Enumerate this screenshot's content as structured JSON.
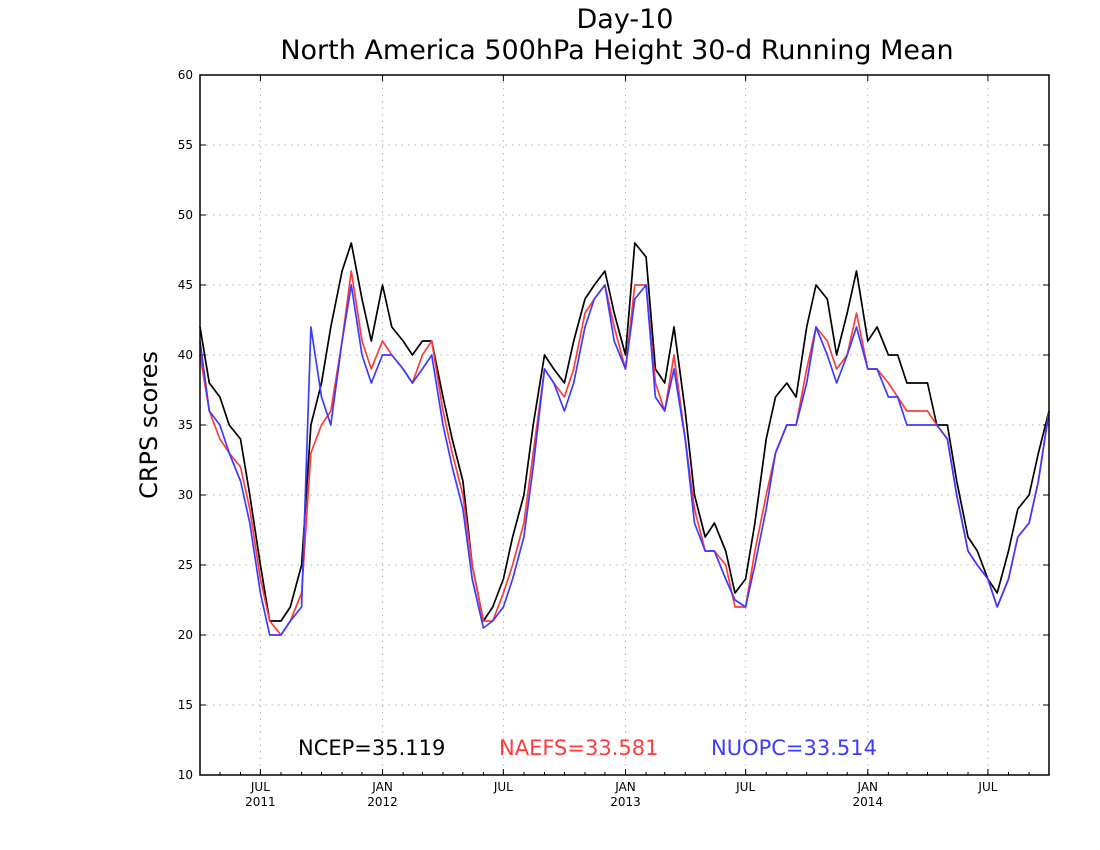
{
  "chart_data": {
    "type": "line",
    "title": "Day-10",
    "subtitle": "North America 500hPa Height 30-d Running Mean",
    "xlabel": "",
    "ylabel": "CRPS scores",
    "ylim": [
      10,
      60
    ],
    "yticks": [
      10,
      15,
      20,
      25,
      30,
      35,
      40,
      45,
      50,
      55,
      60
    ],
    "xlim": [
      "2011-04-01",
      "2014-10-01"
    ],
    "xticks": [
      {
        "date": "2011-07-01",
        "label": "JUL",
        "year": "2011"
      },
      {
        "date": "2012-01-01",
        "label": "JAN",
        "year": "2012"
      },
      {
        "date": "2012-07-01",
        "label": "JUL",
        "year": ""
      },
      {
        "date": "2013-01-01",
        "label": "JAN",
        "year": "2013"
      },
      {
        "date": "2013-07-01",
        "label": "JUL",
        "year": ""
      },
      {
        "date": "2014-01-01",
        "label": "JAN",
        "year": "2014"
      },
      {
        "date": "2014-07-01",
        "label": "JUL",
        "year": ""
      }
    ],
    "grid": true,
    "legend_position": "bottom-center",
    "series": [
      {
        "name": "NCEP",
        "legend_label": "NCEP=35.119",
        "color": "#000000",
        "x": [
          "2011-04-01",
          "2011-04-15",
          "2011-05-01",
          "2011-05-15",
          "2011-06-01",
          "2011-06-15",
          "2011-07-01",
          "2011-07-15",
          "2011-08-01",
          "2011-08-15",
          "2011-09-01",
          "2011-09-15",
          "2011-10-01",
          "2011-10-15",
          "2011-11-01",
          "2011-11-15",
          "2011-12-01",
          "2011-12-15",
          "2012-01-01",
          "2012-01-15",
          "2012-02-01",
          "2012-02-15",
          "2012-03-01",
          "2012-03-15",
          "2012-04-01",
          "2012-04-15",
          "2012-05-01",
          "2012-05-15",
          "2012-06-01",
          "2012-06-15",
          "2012-07-01",
          "2012-07-15",
          "2012-08-01",
          "2012-08-15",
          "2012-09-01",
          "2012-09-15",
          "2012-10-01",
          "2012-10-15",
          "2012-11-01",
          "2012-11-15",
          "2012-12-01",
          "2012-12-15",
          "2013-01-01",
          "2013-01-15",
          "2013-02-01",
          "2013-02-15",
          "2013-03-01",
          "2013-03-15",
          "2013-04-01",
          "2013-04-15",
          "2013-05-01",
          "2013-05-15",
          "2013-06-01",
          "2013-06-15",
          "2013-07-01",
          "2013-07-15",
          "2013-08-01",
          "2013-08-15",
          "2013-09-01",
          "2013-09-15",
          "2013-10-01",
          "2013-10-15",
          "2013-11-01",
          "2013-11-15",
          "2013-12-01",
          "2013-12-15",
          "2014-01-01",
          "2014-01-15",
          "2014-02-01",
          "2014-02-15",
          "2014-03-01",
          "2014-03-15",
          "2014-04-01",
          "2014-04-15",
          "2014-05-01",
          "2014-05-15",
          "2014-06-01",
          "2014-06-15",
          "2014-07-01",
          "2014-07-15",
          "2014-08-01",
          "2014-08-15",
          "2014-09-01",
          "2014-09-15",
          "2014-10-01"
        ],
        "y": [
          42,
          38,
          37,
          35,
          34,
          30,
          25,
          21,
          21,
          22,
          25,
          35,
          38,
          42,
          46,
          48,
          44,
          41,
          45,
          42,
          41,
          40,
          41,
          41,
          37,
          34,
          31,
          25,
          21,
          22,
          24,
          27,
          30,
          35,
          40,
          39,
          38,
          41,
          44,
          45,
          46,
          43,
          40,
          48,
          47,
          39,
          38,
          42,
          36,
          30,
          27,
          28,
          26,
          23,
          24,
          28,
          34,
          37,
          38,
          37,
          42,
          45,
          44,
          40,
          43,
          46,
          41,
          42,
          40,
          40,
          38,
          38,
          38,
          35,
          35,
          31,
          27,
          26,
          24,
          23,
          26,
          29,
          30,
          33,
          36
        ]
      },
      {
        "name": "NAEFS",
        "legend_label": "NAEFS=33.581",
        "color": "#ff3c3c",
        "x": [
          "2011-04-01",
          "2011-04-15",
          "2011-05-01",
          "2011-05-15",
          "2011-06-01",
          "2011-06-15",
          "2011-07-01",
          "2011-07-15",
          "2011-08-01",
          "2011-08-15",
          "2011-09-01",
          "2011-09-15",
          "2011-10-01",
          "2011-10-15",
          "2011-11-01",
          "2011-11-15",
          "2011-12-01",
          "2011-12-15",
          "2012-01-01",
          "2012-01-15",
          "2012-02-01",
          "2012-02-15",
          "2012-03-01",
          "2012-03-15",
          "2012-04-01",
          "2012-04-15",
          "2012-05-01",
          "2012-05-15",
          "2012-06-01",
          "2012-06-15",
          "2012-07-01",
          "2012-07-15",
          "2012-08-01",
          "2012-08-15",
          "2012-09-01",
          "2012-09-15",
          "2012-10-01",
          "2012-10-15",
          "2012-11-01",
          "2012-11-15",
          "2012-12-01",
          "2012-12-15",
          "2013-01-01",
          "2013-01-15",
          "2013-02-01",
          "2013-02-15",
          "2013-03-01",
          "2013-03-15",
          "2013-04-01",
          "2013-04-15",
          "2013-05-01",
          "2013-05-15",
          "2013-06-01",
          "2013-06-15",
          "2013-07-01",
          "2013-07-15",
          "2013-08-01",
          "2013-08-15",
          "2013-09-01",
          "2013-09-15",
          "2013-10-01",
          "2013-10-15",
          "2013-11-01",
          "2013-11-15",
          "2013-12-01",
          "2013-12-15",
          "2014-01-01",
          "2014-01-15",
          "2014-02-01",
          "2014-02-15",
          "2014-03-01",
          "2014-03-15",
          "2014-04-01",
          "2014-04-15",
          "2014-05-01",
          "2014-05-15",
          "2014-06-01",
          "2014-06-15",
          "2014-07-01",
          "2014-07-15",
          "2014-08-01",
          "2014-08-15",
          "2014-09-01",
          "2014-09-15",
          "2014-10-01"
        ],
        "y": [
          40,
          36,
          34,
          33,
          32,
          29,
          24,
          21,
          20,
          21,
          23,
          33,
          35,
          36,
          41,
          46,
          41,
          39,
          41,
          40,
          39,
          38,
          40,
          41,
          36,
          33,
          30,
          25,
          21,
          21,
          23,
          25,
          28,
          33,
          39,
          38,
          37,
          39,
          43,
          44,
          45,
          42,
          39,
          45,
          45,
          38,
          36,
          40,
          34,
          29,
          26,
          26,
          25,
          22,
          22,
          26,
          30,
          33,
          35,
          35,
          39,
          42,
          41,
          39,
          40,
          43,
          39,
          39,
          38,
          37,
          36,
          36,
          36,
          35,
          34,
          30,
          26,
          25,
          24,
          22,
          24,
          27,
          28,
          31,
          36
        ]
      },
      {
        "name": "NUOPC",
        "legend_label": "NUOPC=33.514",
        "color": "#3c3cff",
        "x": [
          "2011-04-01",
          "2011-04-15",
          "2011-05-01",
          "2011-05-15",
          "2011-06-01",
          "2011-06-15",
          "2011-07-01",
          "2011-07-15",
          "2011-08-01",
          "2011-08-15",
          "2011-09-01",
          "2011-09-15",
          "2011-10-01",
          "2011-10-15",
          "2011-11-01",
          "2011-11-15",
          "2011-12-01",
          "2011-12-15",
          "2012-01-01",
          "2012-01-15",
          "2012-02-01",
          "2012-02-15",
          "2012-03-01",
          "2012-03-15",
          "2012-04-01",
          "2012-04-15",
          "2012-05-01",
          "2012-05-15",
          "2012-06-01",
          "2012-06-15",
          "2012-07-01",
          "2012-07-15",
          "2012-08-01",
          "2012-08-15",
          "2012-09-01",
          "2012-09-15",
          "2012-10-01",
          "2012-10-15",
          "2012-11-01",
          "2012-11-15",
          "2012-12-01",
          "2012-12-15",
          "2013-01-01",
          "2013-01-15",
          "2013-02-01",
          "2013-02-15",
          "2013-03-01",
          "2013-03-15",
          "2013-04-01",
          "2013-04-15",
          "2013-05-01",
          "2013-05-15",
          "2013-06-01",
          "2013-06-15",
          "2013-07-01",
          "2013-07-15",
          "2013-08-01",
          "2013-08-15",
          "2013-09-01",
          "2013-09-15",
          "2013-10-01",
          "2013-10-15",
          "2013-11-01",
          "2013-11-15",
          "2013-12-01",
          "2013-12-15",
          "2014-01-01",
          "2014-01-15",
          "2014-02-01",
          "2014-02-15",
          "2014-03-01",
          "2014-03-15",
          "2014-04-01",
          "2014-04-15",
          "2014-05-01",
          "2014-05-15",
          "2014-06-01",
          "2014-06-15",
          "2014-07-01",
          "2014-07-15",
          "2014-08-01",
          "2014-08-15",
          "2014-09-01",
          "2014-09-15",
          "2014-10-01"
        ],
        "y": [
          41,
          36,
          35,
          33,
          31,
          28,
          23,
          20,
          20,
          21,
          22,
          42,
          37,
          35,
          41,
          45,
          40,
          38,
          40,
          40,
          39,
          38,
          39,
          40,
          35,
          32,
          29,
          24,
          20.5,
          21,
          22,
          24,
          27,
          32,
          39,
          38,
          36,
          38,
          42,
          44,
          45,
          41,
          39,
          44,
          45,
          37,
          36,
          39,
          34,
          28,
          26,
          26,
          24,
          22.5,
          22,
          25,
          29,
          33,
          35,
          35,
          38,
          42,
          40,
          38,
          40,
          42,
          39,
          39,
          37,
          37,
          35,
          35,
          35,
          35,
          34,
          30,
          26,
          25,
          24,
          22,
          24,
          27,
          28,
          31,
          36
        ]
      }
    ]
  }
}
